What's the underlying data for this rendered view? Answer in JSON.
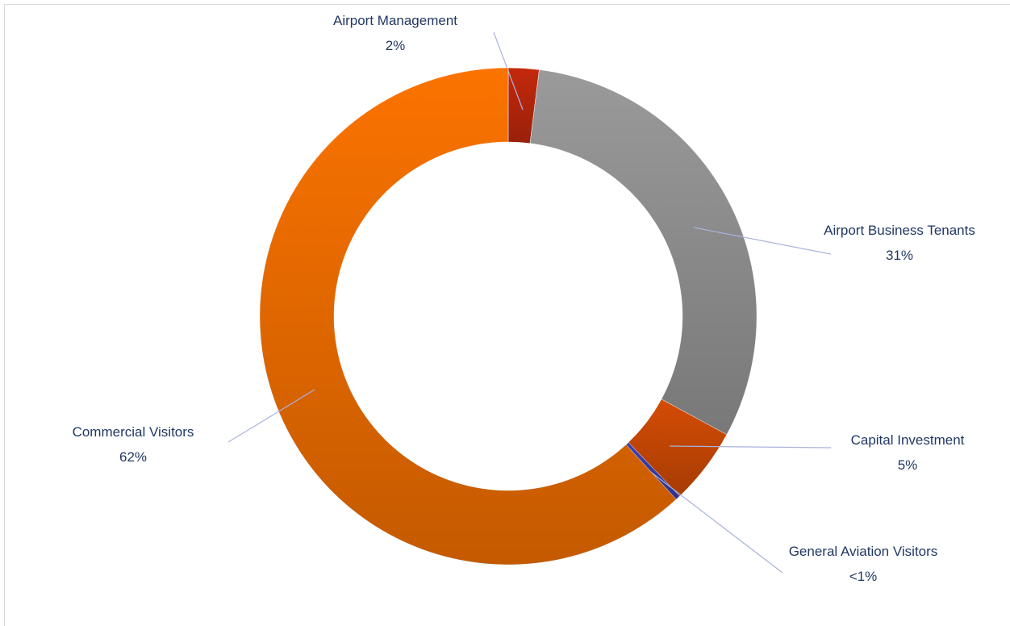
{
  "chart_data": {
    "type": "donut",
    "categories": [
      "Airport Management",
      "Airport Business Tenants",
      "Capital Investment",
      "General Aviation Visitors",
      "Commercial Visitors"
    ],
    "values": [
      2,
      31,
      5,
      0.3,
      62
    ],
    "value_labels": [
      "2%",
      "31%",
      "5%",
      "<1%",
      "62%"
    ],
    "colors": [
      "#c4290c",
      "#9a9a9a",
      "#d44c04",
      "#3a3fb5",
      "#fb7300"
    ]
  }
}
